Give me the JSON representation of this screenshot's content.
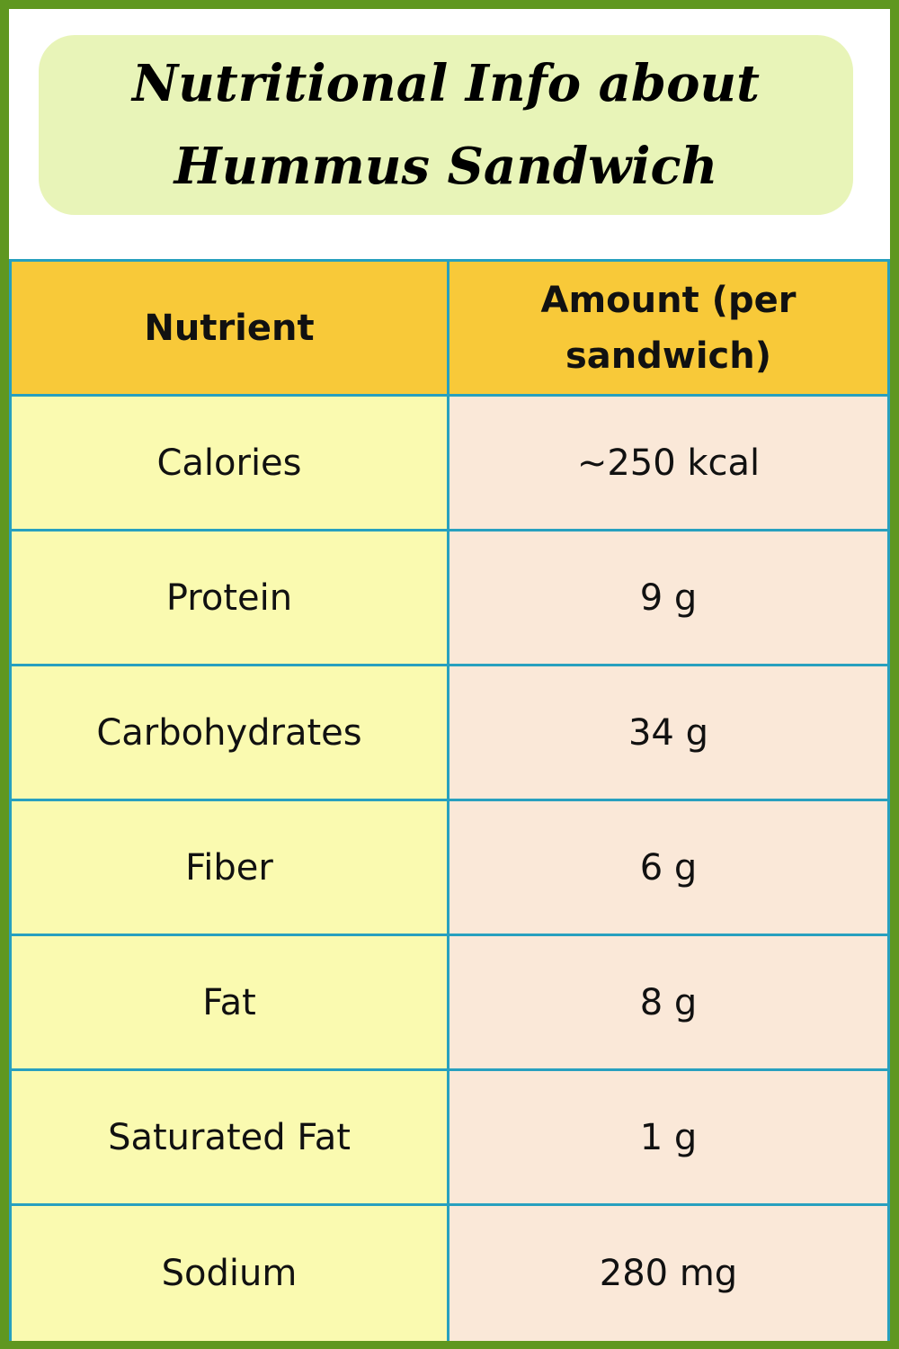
{
  "title": "Nutritional Info about Hummus Sandwich",
  "table": {
    "headers": [
      "Nutrient",
      "Amount (per sandwich)"
    ],
    "rows": [
      {
        "nutrient": "Calories",
        "amount": "~250 kcal"
      },
      {
        "nutrient": "Protein",
        "amount": "9 g"
      },
      {
        "nutrient": "Carbohydrates",
        "amount": "34 g"
      },
      {
        "nutrient": "Fiber",
        "amount": "6 g"
      },
      {
        "nutrient": "Fat",
        "amount": "8 g"
      },
      {
        "nutrient": "Saturated Fat",
        "amount": "1 g"
      },
      {
        "nutrient": "Sodium",
        "amount": "280 mg"
      }
    ]
  },
  "colors": {
    "border_green": "#5f9720",
    "title_bg": "#e8f4b8",
    "header_bg": "#f8c939",
    "nutrient_bg": "#fafab0",
    "amount_bg": "#fae8d8",
    "grid_line": "#27a0bf"
  }
}
